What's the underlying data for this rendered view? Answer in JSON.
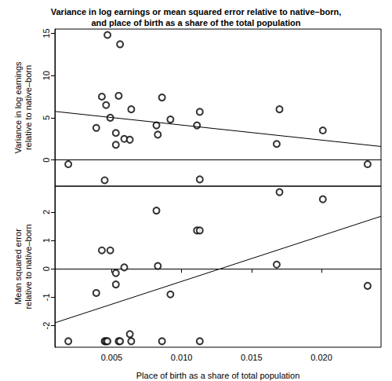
{
  "chart_data": [
    {
      "type": "scatter",
      "title": "Variance in log earnings or mean squared error relative to native–born,\nand place of birth as a share of the total population",
      "ylabel": "Variance in log earnings\nrelative to native–born",
      "xlim": [
        0.00094,
        0.02426
      ],
      "ylim": [
        -3.1,
        15.5
      ],
      "yticks": [
        0,
        5,
        10,
        15
      ],
      "grid": false,
      "tick_labels": "y",
      "series": [
        {
          "type": "scatter",
          "marker": "circle_open",
          "color": "#000000",
          "x": [
            0.0019,
            0.0039,
            0.0043,
            0.0045,
            0.0046,
            0.0047,
            0.0049,
            0.0053,
            0.0053,
            0.0055,
            0.0056,
            0.0059,
            0.0063,
            0.0064,
            0.0082,
            0.0083,
            0.0086,
            0.0092,
            0.0111,
            0.0113,
            0.0113,
            0.0168,
            0.017,
            0.0201,
            0.0233
          ],
          "values": [
            -0.5,
            3.8,
            7.5,
            -2.4,
            6.5,
            14.8,
            5.0,
            1.8,
            3.2,
            7.6,
            13.7,
            2.5,
            2.4,
            6.0,
            4.1,
            3.0,
            7.4,
            4.8,
            4.1,
            5.7,
            -2.3,
            1.9,
            6.0,
            3.5,
            -0.5
          ]
        },
        {
          "type": "line",
          "line_style": "solid",
          "color": "#000000",
          "x": [
            0.00094,
            0.02426
          ],
          "values": [
            5.75,
            1.6
          ]
        }
      ]
    },
    {
      "type": "scatter",
      "ylabel": "Mean squared error\nrelative to native–born",
      "xlabel": "Place of birth as a share of total population",
      "xlim": [
        0.00094,
        0.02426
      ],
      "ylim": [
        -2.76,
        2.91
      ],
      "xticks": [
        0.005,
        {
          "value": 0.01,
          "label": "0.010"
        },
        0.015,
        {
          "value": 0.02,
          "label": "0.020"
        }
      ],
      "yticks": [
        -2,
        -1,
        0,
        1,
        2
      ],
      "grid": false,
      "tick_labels": true,
      "series": [
        {
          "type": "scatter",
          "marker": "circle_open",
          "color": "#000000",
          "x": [
            0.0019,
            0.0039,
            0.0043,
            0.0045,
            0.0046,
            0.0047,
            0.0049,
            0.0053,
            0.0053,
            0.0055,
            0.0056,
            0.0059,
            0.0063,
            0.0064,
            0.0082,
            0.0083,
            0.0086,
            0.0092,
            0.0111,
            0.0113,
            0.0113,
            0.0168,
            0.017,
            0.0201,
            0.0233
          ],
          "values": [
            -2.55,
            -0.85,
            0.65,
            -2.55,
            -2.55,
            -2.55,
            0.65,
            -0.15,
            -0.55,
            -2.55,
            -2.55,
            0.05,
            -2.3,
            -2.55,
            2.05,
            0.1,
            -2.55,
            -0.9,
            1.35,
            1.35,
            -2.55,
            0.15,
            2.7,
            2.45,
            -0.6
          ]
        },
        {
          "type": "line",
          "line_style": "solid",
          "color": "#000000",
          "x": [
            0.00094,
            0.02426
          ],
          "values": [
            -1.9,
            1.85
          ]
        }
      ]
    }
  ]
}
